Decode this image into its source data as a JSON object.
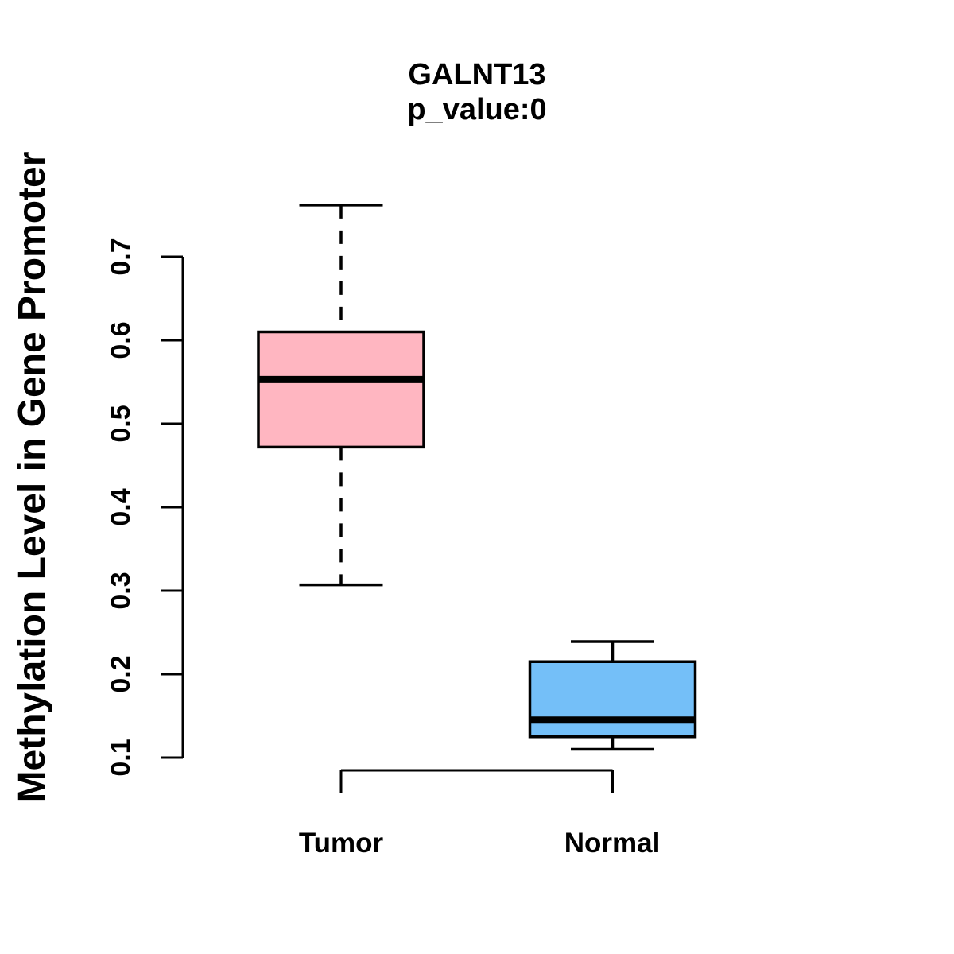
{
  "chart_data": {
    "type": "boxplot",
    "title": "GALNT13",
    "subtitle": "p_value:0",
    "ylabel": "Methylation Level in Gene Promoter",
    "xlabel": "",
    "categories": [
      "Tumor",
      "Normal"
    ],
    "yticks": [
      0.1,
      0.2,
      0.3,
      0.4,
      0.5,
      0.6,
      0.7
    ],
    "ylim": [
      0.08,
      0.78
    ],
    "grid": false,
    "legend": "none",
    "series": [
      {
        "name": "Tumor",
        "low": 0.307,
        "q1": 0.472,
        "median": 0.553,
        "q3": 0.61,
        "high": 0.762,
        "fill": "#FFB6C1",
        "stroke": "#000000"
      },
      {
        "name": "Normal",
        "low": 0.11,
        "q1": 0.125,
        "median": 0.145,
        "q3": 0.215,
        "high": 0.239,
        "fill": "#74BFF8",
        "stroke": "#000000"
      }
    ],
    "comparison_bracket": {
      "between": [
        "Tumor",
        "Normal"
      ]
    }
  },
  "colors": {
    "background": "#FFFFFF",
    "text": "#000000",
    "axis": "#000000",
    "tumor_fill": "#FFB6C1",
    "normal_fill": "#74BFF8"
  }
}
